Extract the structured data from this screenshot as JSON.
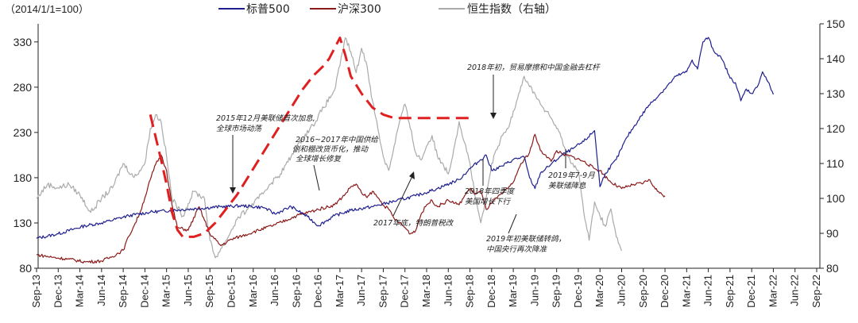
{
  "chart_data": {
    "type": "line",
    "note": "（2014/1/1=100）",
    "legend": [
      {
        "name": "标普500",
        "color": "#1f1f8f"
      },
      {
        "name": "沪深300",
        "color": "#8b1a1a"
      },
      {
        "name": "恒生指数（右轴）",
        "color": "#aaaaaa"
      }
    ],
    "left_axis": {
      "ticks": [
        "80",
        "130",
        "180",
        "230",
        "280",
        "330"
      ],
      "range": [
        80,
        350
      ]
    },
    "right_axis": {
      "ticks": [
        "80",
        "90",
        "100",
        "110",
        "120",
        "130",
        "140",
        "150"
      ],
      "range": [
        80,
        150
      ]
    },
    "x_ticks": [
      "Sep-13",
      "Dec-13",
      "Mar-14",
      "Jun-14",
      "Sep-14",
      "Dec-14",
      "Mar-15",
      "Jun-15",
      "Sep-15",
      "Dec-15",
      "Mar-16",
      "Jun-16",
      "Sep-16",
      "Dec-16",
      "Mar-17",
      "Jun-17",
      "Sep-17",
      "Dec-17",
      "Mar-18",
      "Jun-18",
      "Sep-18",
      "Dec-18",
      "Mar-19",
      "Jun-19",
      "Sep-19",
      "Dec-19",
      "Mar-20",
      "Jun-20",
      "Sep-20",
      "Dec-20",
      "Mar-21",
      "Jun-21",
      "Sep-21",
      "Dec-21",
      "Mar-22",
      "Jun-22",
      "Sep-22"
    ],
    "series": [
      {
        "name": "标普500",
        "axis": "left",
        "color": "#1f1f8f",
        "values": [
          [
            0,
            113
          ],
          [
            4,
            118
          ],
          [
            9,
            127
          ],
          [
            12,
            130
          ],
          [
            17,
            138
          ],
          [
            21,
            142
          ],
          [
            25,
            144
          ],
          [
            30,
            146
          ],
          [
            34,
            148
          ],
          [
            38,
            149
          ],
          [
            42,
            147
          ],
          [
            44,
            140
          ],
          [
            47,
            148
          ],
          [
            50,
            137
          ],
          [
            52,
            127
          ],
          [
            55,
            138
          ],
          [
            58,
            144
          ],
          [
            62,
            148
          ],
          [
            66,
            154
          ],
          [
            70,
            160
          ],
          [
            74,
            168
          ],
          [
            78,
            178
          ],
          [
            80,
            190
          ],
          [
            82,
            200
          ],
          [
            83,
            205
          ],
          [
            84,
            188
          ],
          [
            86,
            193
          ],
          [
            88,
            200
          ],
          [
            90,
            203
          ],
          [
            91,
            180
          ],
          [
            92,
            168
          ],
          [
            93,
            185
          ],
          [
            95,
            195
          ],
          [
            97,
            205
          ],
          [
            99,
            212
          ],
          [
            101,
            220
          ],
          [
            103,
            232
          ],
          [
            104,
            170
          ],
          [
            105,
            185
          ],
          [
            107,
            200
          ],
          [
            109,
            225
          ],
          [
            111,
            243
          ],
          [
            113,
            260
          ],
          [
            115,
            272
          ],
          [
            117,
            285
          ],
          [
            118,
            292
          ],
          [
            120,
            297
          ],
          [
            121,
            310
          ],
          [
            122,
            300
          ],
          [
            123,
            330
          ],
          [
            124,
            335
          ],
          [
            125,
            320
          ],
          [
            126,
            315
          ],
          [
            127,
            305
          ],
          [
            128,
            290
          ],
          [
            129,
            285
          ],
          [
            130,
            265
          ],
          [
            131,
            278
          ],
          [
            132,
            273
          ],
          [
            133,
            280
          ],
          [
            134,
            297
          ],
          [
            135,
            286
          ],
          [
            136,
            272
          ]
        ]
      },
      {
        "name": "沪深300",
        "axis": "left",
        "color": "#8b1a1a",
        "values": [
          [
            0,
            95
          ],
          [
            3,
            92
          ],
          [
            6,
            90
          ],
          [
            9,
            87
          ],
          [
            12,
            88
          ],
          [
            14,
            93
          ],
          [
            16,
            100
          ],
          [
            17,
            115
          ],
          [
            18,
            127
          ],
          [
            19,
            140
          ],
          [
            20,
            158
          ],
          [
            21,
            178
          ],
          [
            22,
            195
          ],
          [
            23,
            205
          ],
          [
            24,
            188
          ],
          [
            25,
            150
          ],
          [
            26,
            125
          ],
          [
            28,
            122
          ],
          [
            30,
            148
          ],
          [
            32,
            118
          ],
          [
            34,
            105
          ],
          [
            36,
            112
          ],
          [
            40,
            120
          ],
          [
            44,
            128
          ],
          [
            48,
            138
          ],
          [
            52,
            145
          ],
          [
            55,
            150
          ],
          [
            57,
            162
          ],
          [
            58,
            170
          ],
          [
            59,
            173
          ],
          [
            60,
            163
          ],
          [
            61,
            158
          ],
          [
            62,
            165
          ],
          [
            63,
            158
          ],
          [
            64,
            150
          ],
          [
            65,
            145
          ],
          [
            66,
            135
          ],
          [
            67,
            130
          ],
          [
            68,
            125
          ],
          [
            69,
            118
          ],
          [
            70,
            122
          ],
          [
            71,
            140
          ],
          [
            72,
            150
          ],
          [
            73,
            155
          ],
          [
            74,
            148
          ],
          [
            76,
            155
          ],
          [
            78,
            150
          ],
          [
            79,
            160
          ],
          [
            80,
            168
          ],
          [
            81,
            162
          ],
          [
            82,
            165
          ],
          [
            83,
            145
          ],
          [
            84,
            152
          ],
          [
            86,
            163
          ],
          [
            87,
            168
          ],
          [
            88,
            175
          ],
          [
            89,
            190
          ],
          [
            90,
            200
          ],
          [
            91,
            208
          ],
          [
            92,
            228
          ],
          [
            93,
            210
          ],
          [
            94,
            205
          ],
          [
            95,
            198
          ],
          [
            96,
            210
          ],
          [
            97,
            206
          ],
          [
            99,
            203
          ],
          [
            101,
            198
          ],
          [
            103,
            190
          ],
          [
            104,
            188
          ],
          [
            106,
            175
          ],
          [
            108,
            168
          ],
          [
            110,
            172
          ],
          [
            112,
            174
          ],
          [
            113,
            178
          ],
          [
            114,
            170
          ],
          [
            115,
            163
          ],
          [
            116,
            160
          ]
        ]
      },
      {
        "name": "恒生指数（右轴）",
        "axis": "right",
        "color": "#aaaaaa",
        "values": [
          [
            0,
            100
          ],
          [
            2,
            104
          ],
          [
            4,
            103
          ],
          [
            6,
            104
          ],
          [
            8,
            101
          ],
          [
            10,
            96
          ],
          [
            12,
            100
          ],
          [
            14,
            103
          ],
          [
            16,
            110
          ],
          [
            18,
            106
          ],
          [
            20,
            110
          ],
          [
            21,
            120
          ],
          [
            22,
            124
          ],
          [
            23,
            122
          ],
          [
            24,
            112
          ],
          [
            25,
            100
          ],
          [
            27,
            95
          ],
          [
            29,
            102
          ],
          [
            31,
            100
          ],
          [
            32,
            88
          ],
          [
            33,
            83
          ],
          [
            35,
            88
          ],
          [
            37,
            94
          ],
          [
            39,
            97
          ],
          [
            41,
            100
          ],
          [
            43,
            104
          ],
          [
            45,
            107
          ],
          [
            47,
            112
          ],
          [
            49,
            117
          ],
          [
            51,
            121
          ],
          [
            53,
            126
          ],
          [
            55,
            131
          ],
          [
            56,
            138
          ],
          [
            57,
            146
          ],
          [
            58,
            142
          ],
          [
            59,
            136
          ],
          [
            60,
            143
          ],
          [
            61,
            138
          ],
          [
            62,
            128
          ],
          [
            63,
            120
          ],
          [
            64,
            112
          ],
          [
            65,
            108
          ],
          [
            66,
            115
          ],
          [
            67,
            122
          ],
          [
            68,
            127
          ],
          [
            69,
            120
          ],
          [
            70,
            113
          ],
          [
            71,
            111
          ],
          [
            72,
            115
          ],
          [
            73,
            118
          ],
          [
            74,
            112
          ],
          [
            75,
            110
          ],
          [
            76,
            107
          ],
          [
            77,
            114
          ],
          [
            78,
            122
          ],
          [
            79,
            116
          ],
          [
            80,
            110
          ],
          [
            81,
            100
          ],
          [
            82,
            93
          ],
          [
            83,
            100
          ],
          [
            84,
            110
          ],
          [
            85,
            114
          ],
          [
            86,
            118
          ],
          [
            87,
            120
          ],
          [
            88,
            125
          ],
          [
            89,
            130
          ],
          [
            90,
            135
          ],
          [
            91,
            132
          ],
          [
            92,
            130
          ],
          [
            93,
            127
          ],
          [
            94,
            125
          ],
          [
            95,
            123
          ],
          [
            96,
            120
          ],
          [
            97,
            117
          ],
          [
            98,
            112
          ],
          [
            99,
            110
          ],
          [
            100,
            108
          ],
          [
            101,
            96
          ],
          [
            102,
            88
          ],
          [
            103,
            99
          ],
          [
            104,
            95
          ],
          [
            105,
            92
          ],
          [
            106,
            97
          ],
          [
            107,
            89
          ],
          [
            108,
            85
          ]
        ]
      }
    ],
    "trend_lines": [
      [
        [
          21,
          124
        ],
        [
          23,
          111
        ],
        [
          24,
          104
        ],
        [
          25,
          96
        ],
        [
          26,
          91
        ],
        [
          27,
          89
        ],
        [
          29,
          89
        ],
        [
          31,
          90
        ],
        [
          33,
          93
        ],
        [
          35,
          97
        ],
        [
          37,
          101
        ],
        [
          39,
          106
        ],
        [
          41,
          111
        ],
        [
          43,
          116
        ],
        [
          45,
          121
        ],
        [
          47,
          126
        ],
        [
          49,
          131
        ],
        [
          51,
          135
        ],
        [
          53,
          138
        ],
        [
          54,
          140
        ],
        [
          55,
          143
        ],
        [
          56,
          146
        ],
        [
          57,
          141
        ],
        [
          58,
          135
        ],
        [
          60,
          130
        ],
        [
          62,
          126
        ],
        [
          64,
          124
        ],
        [
          66,
          123
        ],
        [
          68,
          123
        ],
        [
          72,
          123
        ],
        [
          76,
          123
        ],
        [
          80,
          123
        ]
      ]
    ],
    "annotations": [
      {
        "lines": [
          "2015年12月美联储首次加息,",
          "全球市场动荡"
        ]
      },
      {
        "lines": [
          "2016~2017年中国供给",
          "侧和棚改货币化，推动",
          "全球增长修复"
        ]
      },
      {
        "lines": [
          "2017年底，特朗普税改"
        ]
      },
      {
        "lines": [
          "2018年初，贸易摩擦和中国金融去杠杆"
        ]
      },
      {
        "lines": [
          "2018年四季度",
          "美国增长下行"
        ]
      },
      {
        "lines": [
          "2019年初美联储转鸽，",
          "中国央行再次降准"
        ]
      },
      {
        "lines": [
          "2019年7-9月",
          "美联储降息"
        ]
      }
    ]
  }
}
